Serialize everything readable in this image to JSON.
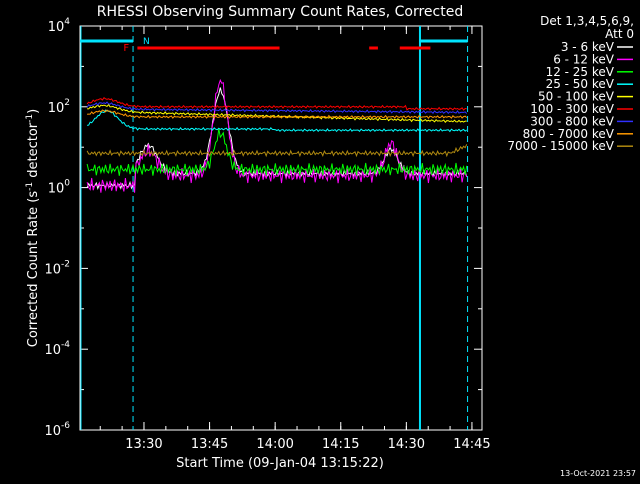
{
  "chart_data": {
    "type": "line",
    "title": "RHESSI Observing Summary Count Rates, Corrected",
    "xlabel": "Start Time (09-Jan-04 13:15:22)",
    "ylabel_main": "Corrected Count Rate (s",
    "ylabel_sup1": "-1",
    "ylabel_mid": " detector",
    "ylabel_sup2": "-1",
    "ylabel_end": ")",
    "x_start_min": 15.37,
    "xlim_min": [
      15.37,
      104.0
    ],
    "ylim_log10": [
      -6,
      4
    ],
    "yscale": "log",
    "x_ticks": [
      {
        "min": 30,
        "label": "13:30"
      },
      {
        "min": 45,
        "label": "13:45"
      },
      {
        "min": 60,
        "label": "14:00"
      },
      {
        "min": 75,
        "label": "14:15"
      },
      {
        "min": 90,
        "label": "14:30"
      },
      {
        "min": 105,
        "label": "14:45"
      }
    ],
    "y_ticks": [
      {
        "exp": 4,
        "base": "10",
        "sup": "4"
      },
      {
        "exp": 2,
        "base": "10",
        "sup": "2"
      },
      {
        "exp": 0,
        "base": "10",
        "sup": "0"
      },
      {
        "exp": -2,
        "base": "10",
        "sup": "-2"
      },
      {
        "exp": -4,
        "base": "10",
        "sup": "-4"
      },
      {
        "exp": -6,
        "base": "10",
        "sup": "-6"
      }
    ],
    "legend_header": [
      "Det 1,3,4,5,6,9,",
      "Att 0"
    ],
    "legend_position": "right",
    "series": [
      {
        "name": "3 - 6 keV",
        "color": "#ffffff"
      },
      {
        "name": "6 - 12 keV",
        "color": "#ff00ff"
      },
      {
        "name": "12 - 25 keV",
        "color": "#00ff00"
      },
      {
        "name": "25 - 50 keV",
        "color": "#00ffff"
      },
      {
        "name": "50 - 100 keV",
        "color": "#ffff00"
      },
      {
        "name": "100 - 300 keV",
        "color": "#ff0000"
      },
      {
        "name": "300 - 800 keV",
        "color": "#3030ff"
      },
      {
        "name": "800 - 7000 keV",
        "color": "#ff9900"
      },
      {
        "name": "7000 - 15000 keV",
        "color": "#b08a10"
      }
    ],
    "night_markers": [
      {
        "from_min": 15.37,
        "to_min": 27.5,
        "label": "N"
      },
      {
        "from_min": 93.0,
        "to_min": 104.0,
        "label": ""
      }
    ],
    "flag_bars": {
      "label": "F",
      "color": "#ff0000",
      "segments": [
        [
          28.5,
          61.0
        ],
        [
          81.5,
          83.5
        ],
        [
          88.5,
          95.5
        ]
      ]
    },
    "footer_timestamp": "13-Oct-2021 23:57"
  }
}
